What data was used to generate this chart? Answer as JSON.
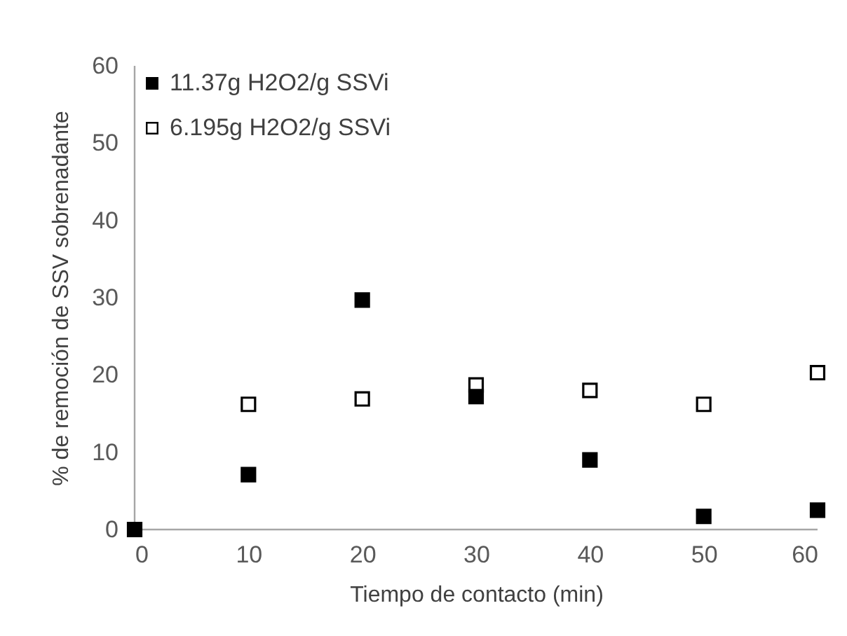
{
  "chart_data": {
    "type": "scatter",
    "xlabel": "Tiempo de contacto (min)",
    "ylabel": "% de remoción de SSV sobrenadante",
    "x": [
      0,
      10,
      20,
      30,
      40,
      50,
      60
    ],
    "series": [
      {
        "name": "11.37g H2O2/g SSVi",
        "color": "#000000",
        "values": [
          0,
          7.1,
          29.7,
          17.2,
          9.0,
          1.7,
          2.5
        ]
      },
      {
        "name": "6.195g H2O2/g SSVi",
        "color": "#ffffff",
        "values": [
          null,
          16.2,
          16.9,
          18.7,
          18.0,
          16.2,
          20.3
        ]
      }
    ],
    "xlim": [
      0,
      60
    ],
    "xticks": [
      0,
      10,
      20,
      30,
      40,
      50,
      60
    ],
    "ylim": [
      0,
      60
    ],
    "yticks": [
      0,
      10,
      20,
      30,
      40,
      50,
      60
    ],
    "grid": false,
    "legend": "top left",
    "marker": "square"
  }
}
